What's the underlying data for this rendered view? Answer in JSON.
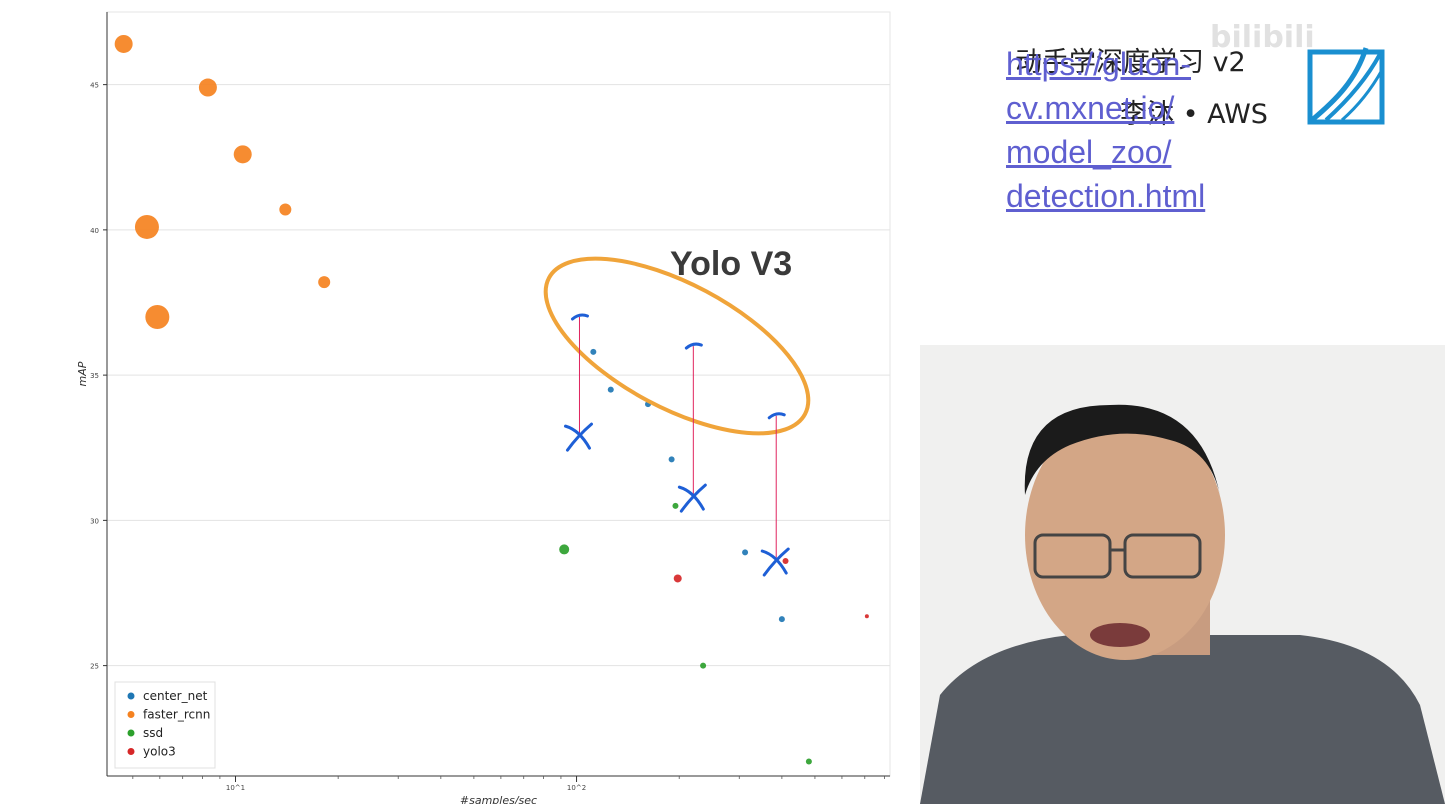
{
  "chart_data": {
    "type": "scatter",
    "xlabel": "#samples/sec",
    "ylabel": "mAP",
    "xscale": "log",
    "xlim": [
      4.2,
      830
    ],
    "ylim": [
      21.2,
      47.5
    ],
    "x_tick_values": [
      10,
      100
    ],
    "x_tick_labels": [
      "10^1",
      "10^2"
    ],
    "y_ticks": [
      25,
      30,
      35,
      40,
      45
    ],
    "grid": true,
    "legend_position": "bottom-left",
    "series": [
      {
        "name": "center_net",
        "color": "#1f77b4",
        "points": [
          {
            "x": 112,
            "y": 35.8,
            "r": 3
          },
          {
            "x": 126,
            "y": 34.5,
            "r": 3
          },
          {
            "x": 162,
            "y": 34.0,
            "r": 3
          },
          {
            "x": 190,
            "y": 32.1,
            "r": 3
          },
          {
            "x": 312,
            "y": 28.9,
            "r": 3
          },
          {
            "x": 400,
            "y": 26.6,
            "r": 3
          }
        ]
      },
      {
        "name": "faster_rcnn",
        "color": "#f58220",
        "points": [
          {
            "x": 4.7,
            "y": 46.4,
            "r": 9
          },
          {
            "x": 8.3,
            "y": 44.9,
            "r": 9
          },
          {
            "x": 10.5,
            "y": 42.6,
            "r": 9
          },
          {
            "x": 14.0,
            "y": 40.7,
            "r": 6
          },
          {
            "x": 5.5,
            "y": 40.1,
            "r": 12
          },
          {
            "x": 18.2,
            "y": 38.2,
            "r": 6
          },
          {
            "x": 5.9,
            "y": 37.0,
            "r": 12
          }
        ]
      },
      {
        "name": "ssd",
        "color": "#2ca02c",
        "points": [
          {
            "x": 92,
            "y": 29.0,
            "r": 5
          },
          {
            "x": 195,
            "y": 30.5,
            "r": 3
          },
          {
            "x": 235,
            "y": 25.0,
            "r": 3
          },
          {
            "x": 480,
            "y": 21.7,
            "r": 3
          }
        ]
      },
      {
        "name": "yolo3",
        "color": "#d62728",
        "points": [
          {
            "x": 198,
            "y": 28.0,
            "r": 4
          },
          {
            "x": 410,
            "y": 28.6,
            "r": 3
          },
          {
            "x": 710,
            "y": 26.7,
            "r": 2
          }
        ]
      }
    ],
    "annotations": {
      "label": "Yolo V3",
      "arrows": [
        {
          "x": 102,
          "from_y": 32.9,
          "to_y": 37.0
        },
        {
          "x": 220,
          "from_y": 30.8,
          "to_y": 36.0
        },
        {
          "x": 385,
          "from_y": 28.6,
          "to_y": 33.6
        }
      ]
    }
  },
  "overlay": {
    "link_lines": [
      "https://gluon-",
      "cv.mxnet.io/",
      "model_zoo/",
      "detection.html"
    ],
    "course_title": "动手学深度学习 v2",
    "course_author": "李沐 • AWS",
    "watermark": "bilibili"
  }
}
